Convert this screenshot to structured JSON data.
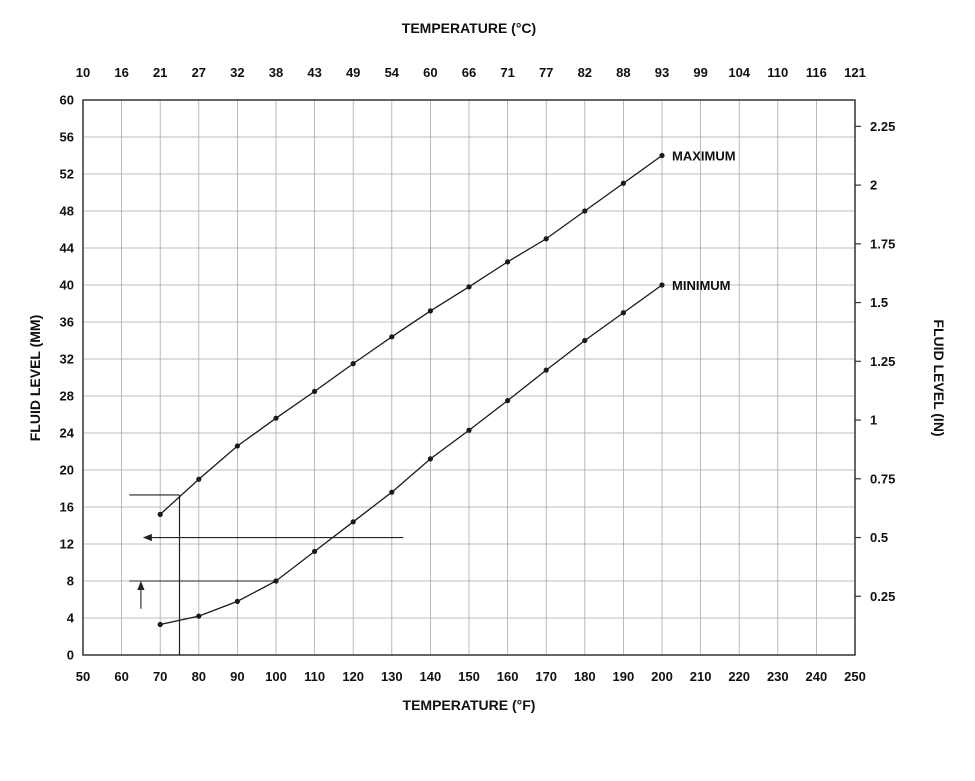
{
  "chart_data": {
    "type": "line",
    "title_top": "TEMPERATURE (°C)",
    "xlabel_bottom": "TEMPERATURE (°F)",
    "ylabel_left": "FLUID LEVEL (MM)",
    "ylabel_right": "FLUID LEVEL (IN)",
    "xlim": [
      50,
      250
    ],
    "ylim": [
      0,
      60
    ],
    "grid": true,
    "x_f_ticks": [
      50,
      60,
      70,
      80,
      90,
      100,
      110,
      120,
      130,
      140,
      150,
      160,
      170,
      180,
      190,
      200,
      210,
      220,
      230,
      240,
      250
    ],
    "x_c_tick_labels": [
      "10",
      "16",
      "21",
      "27",
      "32",
      "38",
      "43",
      "49",
      "54",
      "60",
      "66",
      "71",
      "77",
      "82",
      "88",
      "93",
      "99",
      "104",
      "110",
      "116",
      "121"
    ],
    "y_mm_ticks": [
      0,
      4,
      8,
      12,
      16,
      20,
      24,
      28,
      32,
      36,
      40,
      44,
      48,
      52,
      56,
      60
    ],
    "y_in_tick_labels": [
      "0.25",
      "0.5",
      "0.75",
      "1",
      "1.25",
      "1.5",
      "1.75",
      "2",
      "2.25"
    ],
    "y_in_tick_values_mm": [
      6.35,
      12.7,
      19.05,
      25.4,
      31.75,
      38.1,
      44.45,
      50.8,
      57.15
    ],
    "series": [
      {
        "name": "MAXIMUM",
        "x": [
          70,
          80,
          90,
          100,
          110,
          120,
          130,
          140,
          150,
          160,
          170,
          180,
          190,
          200
        ],
        "y": [
          15.2,
          19.0,
          22.6,
          25.6,
          28.5,
          31.5,
          34.4,
          37.2,
          39.8,
          42.5,
          45.0,
          48.0,
          51.0,
          54.0
        ]
      },
      {
        "name": "MINIMUM",
        "x": [
          70,
          80,
          90,
          100,
          110,
          120,
          130,
          140,
          150,
          160,
          170,
          180,
          190,
          200
        ],
        "y": [
          3.3,
          4.2,
          5.8,
          8.0,
          11.2,
          14.4,
          17.6,
          21.2,
          24.3,
          27.5,
          30.8,
          34.0,
          37.0,
          40.0
        ]
      }
    ],
    "annotations": [
      {
        "type": "hline",
        "y_mm": 17.3,
        "x1_f": 62,
        "x2_f": 75
      },
      {
        "type": "vline",
        "x_f": 75,
        "y1_mm": 0,
        "y2_mm": 17.3
      },
      {
        "type": "arrow_left",
        "y_mm": 12.7,
        "x_tail_f": 133,
        "x_head_f": 65.5
      },
      {
        "type": "hline",
        "y_mm": 8,
        "x1_f": 62,
        "x2_f": 100
      },
      {
        "type": "arrow_up",
        "x_f": 65,
        "y1_mm": 5,
        "y2_mm": 8
      }
    ],
    "colors": {
      "grid": "#aaaaaa",
      "border": "#333333",
      "curve": "#1a1a1a",
      "annotation": "#222222",
      "text": "#111111"
    }
  }
}
